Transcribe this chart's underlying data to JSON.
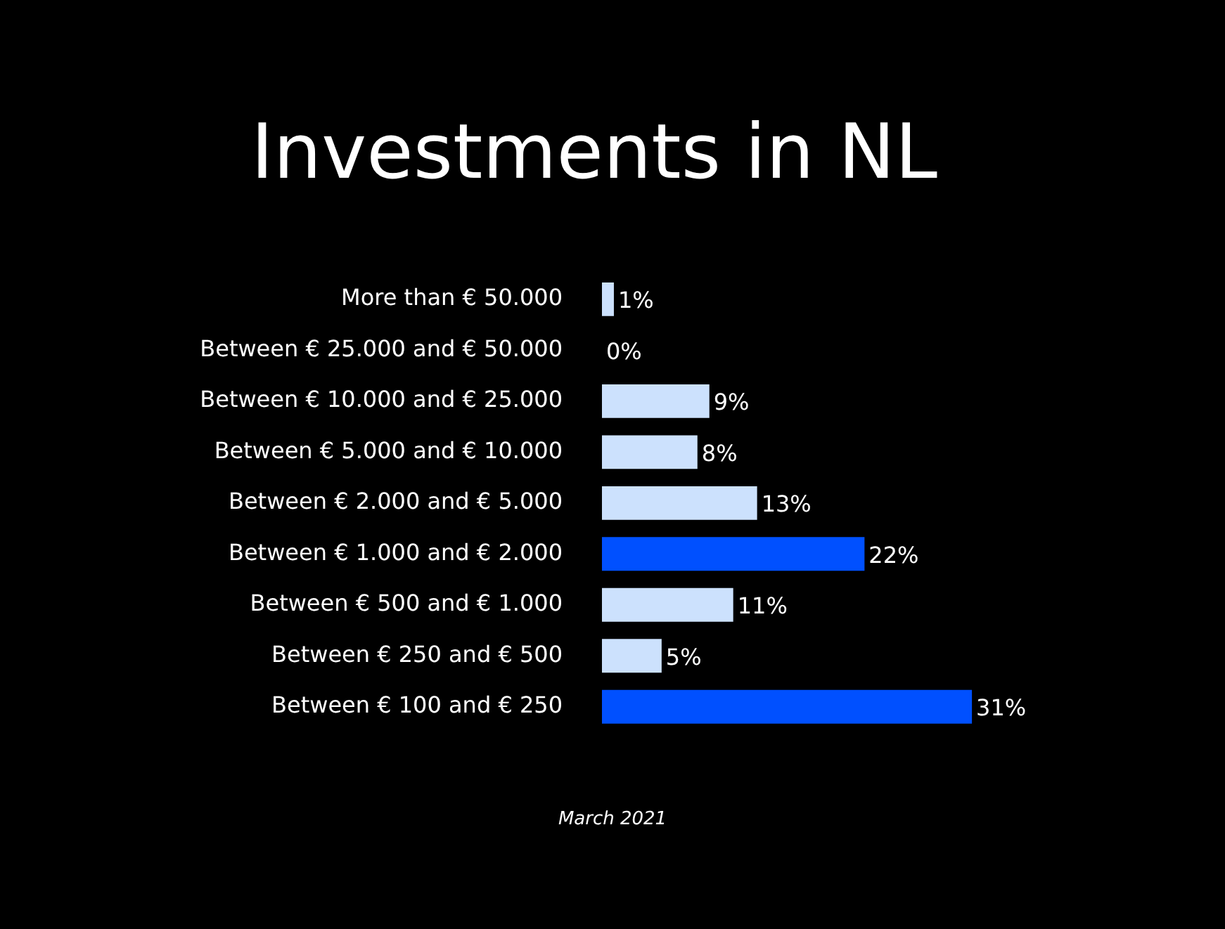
{
  "chart_data": {
    "type": "bar",
    "orientation": "horizontal",
    "title": "Investments in NL",
    "categories": [
      "More than € 50.000",
      "Between € 25.000 and € 50.000",
      "Between € 10.000 and € 25.000",
      "Between € 5.000 and € 10.000",
      "Between € 2.000 and € 5.000",
      "Between € 1.000 and € 2.000",
      "Between € 500 and € 1.000",
      "Between € 250 and € 500",
      "Between € 100 and € 250"
    ],
    "values": [
      1,
      0,
      9,
      8,
      13,
      22,
      11,
      5,
      31
    ],
    "colors": [
      "#cce1fd",
      "#cce1fd",
      "#cce1fd",
      "#cce1fd",
      "#cce1fd",
      "#0050ff",
      "#cce1fd",
      "#cce1fd",
      "#0050ff"
    ],
    "value_labels": [
      "1%",
      "0%",
      "9%",
      "8%",
      "13%",
      "22%",
      "11%",
      "5%",
      "31%"
    ],
    "annotations": [
      "March 2021"
    ]
  }
}
